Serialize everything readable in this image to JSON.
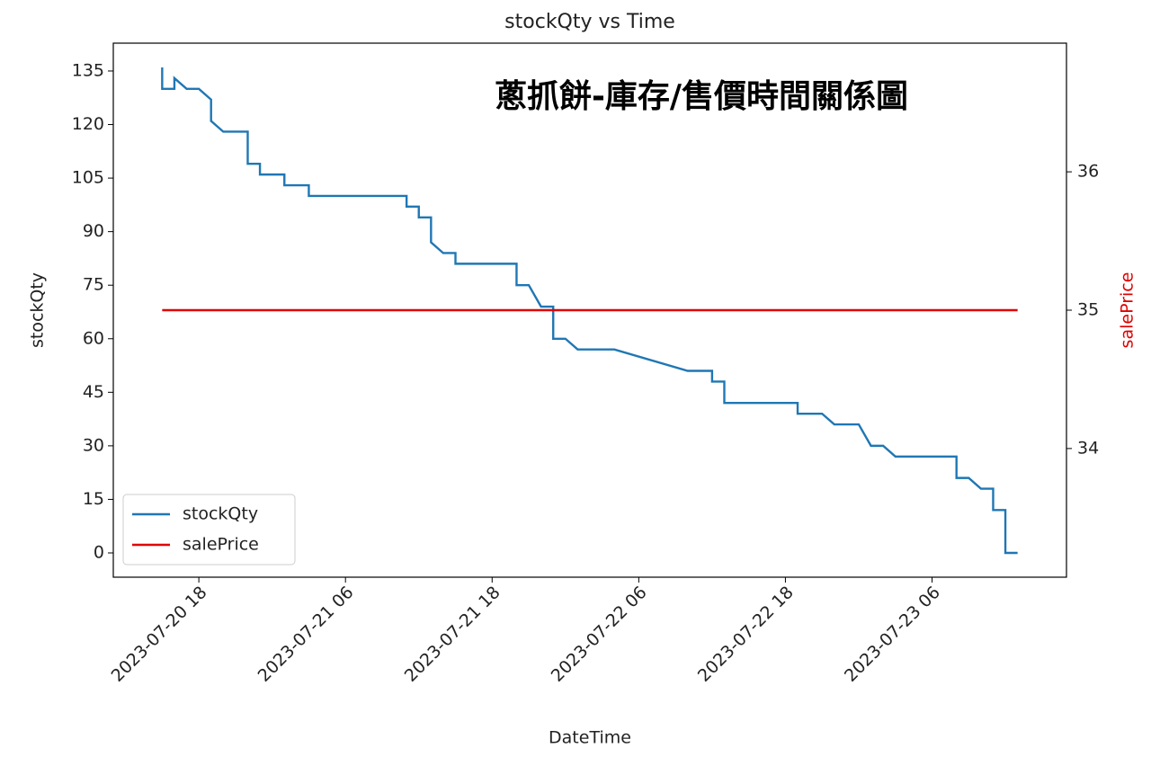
{
  "chart_data": {
    "type": "line",
    "title": "stockQty vs Time",
    "annotation": "蔥抓餅-庫存/售價時間關係圖",
    "xlabel": "DateTime",
    "ylabel": "stockQty",
    "y2label": "salePrice",
    "y2label_color": "#e00000",
    "legend": "lower left",
    "xlim": [
      "2023-07-20 11",
      "2023-07-23 17"
    ],
    "xticks": [
      "2023-07-20 18",
      "2023-07-21 06",
      "2023-07-21 18",
      "2023-07-22 06",
      "2023-07-22 18",
      "2023-07-23 06"
    ],
    "ylim": [
      -6.8,
      142.8
    ],
    "yticks": [
      0,
      15,
      30,
      45,
      60,
      75,
      90,
      105,
      120,
      135
    ],
    "y2lim": [
      33.07,
      36.93
    ],
    "y2ticks": [
      34,
      35,
      36
    ],
    "series": [
      {
        "name": "stockQty",
        "color": "#1f77b4",
        "x": [
          "2023-07-20 15",
          "2023-07-20 15",
          "2023-07-20 16",
          "2023-07-20 16",
          "2023-07-20 17",
          "2023-07-20 18",
          "2023-07-20 19",
          "2023-07-20 19",
          "2023-07-20 19",
          "2023-07-20 20",
          "2023-07-20 22",
          "2023-07-20 22",
          "2023-07-20 23",
          "2023-07-20 23",
          "2023-07-21 01",
          "2023-07-21 01",
          "2023-07-21 03",
          "2023-07-21 03",
          "2023-07-21 11",
          "2023-07-21 11",
          "2023-07-21 12",
          "2023-07-21 12",
          "2023-07-21 13",
          "2023-07-21 13",
          "2023-07-21 14",
          "2023-07-21 15",
          "2023-07-21 15",
          "2023-07-21 20",
          "2023-07-21 20",
          "2023-07-21 21",
          "2023-07-21 22",
          "2023-07-21 23",
          "2023-07-21 23",
          "2023-07-21 23",
          "2023-07-22 00",
          "2023-07-22 01",
          "2023-07-22 04",
          "2023-07-22 10",
          "2023-07-22 12",
          "2023-07-22 12",
          "2023-07-22 13",
          "2023-07-22 13",
          "2023-07-22 19",
          "2023-07-22 19",
          "2023-07-22 21",
          "2023-07-22 22",
          "2023-07-23 00",
          "2023-07-23 01",
          "2023-07-23 02",
          "2023-07-23 03",
          "2023-07-23 08",
          "2023-07-23 08",
          "2023-07-23 09",
          "2023-07-23 10",
          "2023-07-23 11",
          "2023-07-23 11",
          "2023-07-23 12",
          "2023-07-23 12",
          "2023-07-23 13"
        ],
        "values": [
          136,
          130,
          130,
          133,
          130,
          130,
          127,
          124,
          121,
          118,
          118,
          109,
          109,
          106,
          106,
          103,
          103,
          100,
          100,
          97,
          97,
          94,
          94,
          87,
          84,
          84,
          81,
          81,
          75,
          75,
          69,
          69,
          63,
          60,
          60,
          57,
          57,
          51,
          51,
          48,
          48,
          42,
          42,
          39,
          39,
          36,
          36,
          30,
          30,
          27,
          27,
          21,
          21,
          18,
          18,
          12,
          12,
          0,
          0
        ]
      },
      {
        "name": "salePrice",
        "color": "#e00000",
        "axis": "y2",
        "x": [
          "2023-07-20 15",
          "2023-07-23 13"
        ],
        "values": [
          35,
          35
        ]
      }
    ]
  }
}
